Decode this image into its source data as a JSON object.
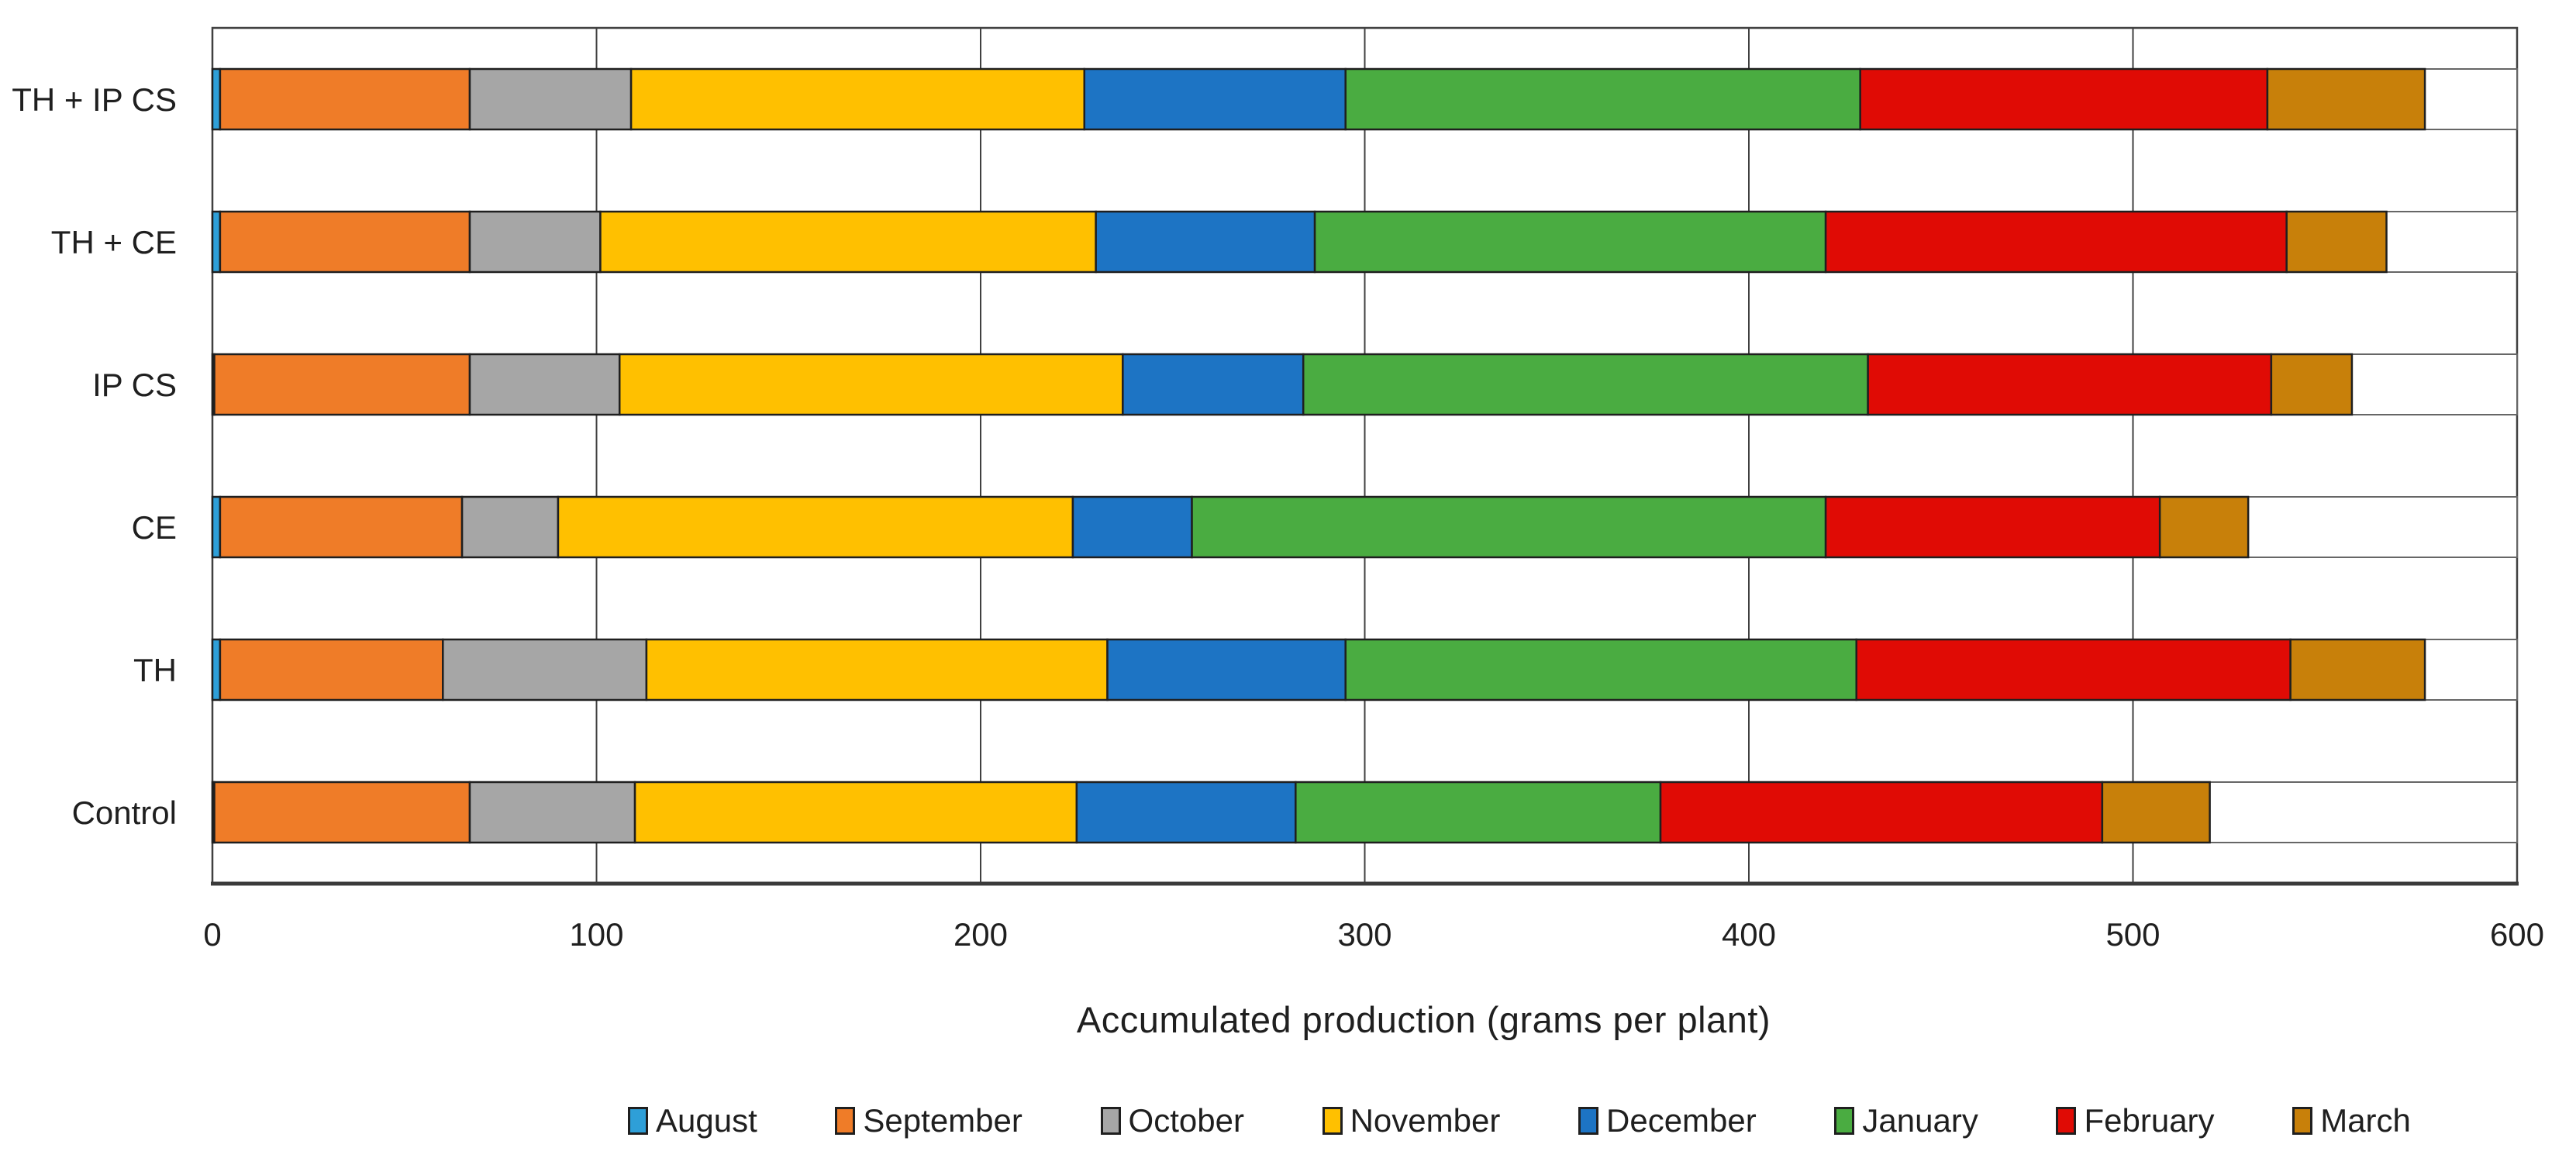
{
  "chart_data": {
    "type": "bar",
    "variant": "horizontal_stacked",
    "xlabel": "Accumulated production (grams per plant)",
    "xlim": [
      0,
      600
    ],
    "x_ticks": [
      0,
      100,
      200,
      300,
      400,
      500,
      600
    ],
    "grid": "vertical major gridlines every 100",
    "legend_position": "bottom",
    "categories": [
      "TH + IP CS",
      "TH + CE",
      "IP CS",
      "CE",
      "TH",
      "Control"
    ],
    "series": [
      {
        "name": "August",
        "color": "#2E9FD8",
        "values": [
          2,
          2,
          0.5,
          2,
          2,
          0.5
        ]
      },
      {
        "name": "September",
        "color": "#EF7C28",
        "values": [
          65,
          65,
          66.5,
          63,
          58,
          66.5
        ]
      },
      {
        "name": "October",
        "color": "#A6A6A6",
        "values": [
          42,
          34,
          39,
          25,
          53,
          43
        ]
      },
      {
        "name": "November",
        "color": "#FFC000",
        "values": [
          118,
          129,
          131,
          134,
          120,
          115
        ]
      },
      {
        "name": "December",
        "color": "#1D74C4",
        "values": [
          68,
          57,
          47,
          31,
          62,
          57
        ]
      },
      {
        "name": "January",
        "color": "#4AAC41",
        "values": [
          134,
          133,
          147,
          165,
          133,
          95
        ]
      },
      {
        "name": "February",
        "color": "#E00B05",
        "values": [
          106,
          120,
          105,
          87,
          113,
          115
        ]
      },
      {
        "name": "March",
        "color": "#C8800A",
        "values": [
          41,
          26,
          21,
          23,
          35,
          28
        ]
      }
    ]
  },
  "styles": {
    "background": "#FFFFFF",
    "text_color": "#1F1F1F",
    "segment_border": "#1F1F1F",
    "row_frame_border": "#666666",
    "gridline_color": "#404040",
    "plot_border_color": "#404040",
    "axis_line_color": "#3A3A3A"
  }
}
